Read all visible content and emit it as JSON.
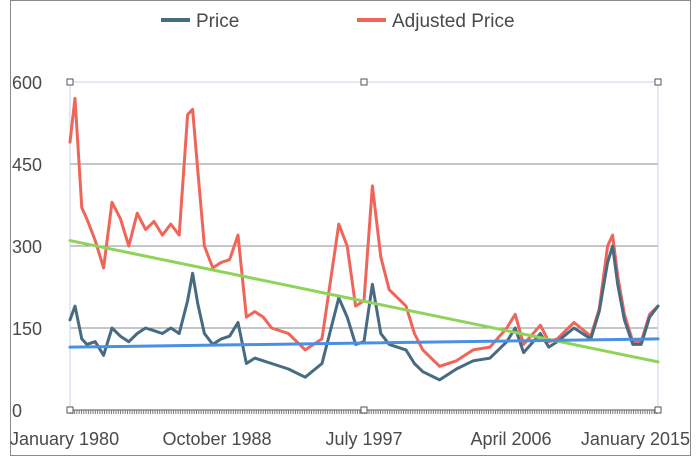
{
  "colors": {
    "price": "#466b82",
    "adjusted_price": "#f0655a",
    "trend_adjusted": "#8ed45a",
    "trend_price": "#4a90e2",
    "grid": "#8c8c8c"
  },
  "legend": {
    "items": [
      {
        "name": "Price",
        "color": "#466b82"
      },
      {
        "name": "Adjusted Price",
        "color": "#f0655a"
      }
    ]
  },
  "chart_data": {
    "type": "line",
    "title": "",
    "xlabel": "",
    "ylabel": "",
    "x_range": [
      1980.0,
      2015.0
    ],
    "ylim": [
      0,
      600
    ],
    "yticks": [
      0,
      150,
      300,
      450,
      600
    ],
    "xtick_labels": [
      {
        "label": "January 1980",
        "x": 1980.0
      },
      {
        "label": "October 1988",
        "x": 1988.75
      },
      {
        "label": "July 1997",
        "x": 1997.5
      },
      {
        "label": "April 2006",
        "x": 2006.25
      },
      {
        "label": "January 2015",
        "x": 2015.0
      }
    ],
    "grid": true,
    "legend_position": "top",
    "series": [
      {
        "name": "Price",
        "x": [
          1980.0,
          1980.3,
          1980.7,
          1981.0,
          1981.5,
          1982.0,
          1982.5,
          1983.0,
          1983.5,
          1984.0,
          1984.5,
          1985.0,
          1985.5,
          1986.0,
          1986.5,
          1987.0,
          1987.3,
          1987.6,
          1988.0,
          1988.5,
          1989.0,
          1989.5,
          1990.0,
          1990.5,
          1991.0,
          1991.5,
          1992.0,
          1993.0,
          1994.0,
          1995.0,
          1996.0,
          1996.5,
          1997.0,
          1997.5,
          1998.0,
          1998.5,
          1999.0,
          2000.0,
          2000.5,
          2001.0,
          2002.0,
          2003.0,
          2004.0,
          2005.0,
          2006.0,
          2006.5,
          2007.0,
          2008.0,
          2008.5,
          2009.0,
          2010.0,
          2011.0,
          2011.5,
          2012.0,
          2012.3,
          2012.6,
          2013.0,
          2013.5,
          2014.0,
          2014.5,
          2015.0
        ],
        "y": [
          165,
          190,
          130,
          120,
          125,
          100,
          150,
          135,
          125,
          140,
          150,
          145,
          140,
          150,
          140,
          200,
          250,
          195,
          140,
          120,
          130,
          135,
          160,
          85,
          95,
          90,
          85,
          75,
          60,
          85,
          205,
          170,
          120,
          125,
          230,
          140,
          120,
          110,
          85,
          70,
          55,
          75,
          90,
          95,
          125,
          150,
          105,
          140,
          115,
          125,
          150,
          130,
          180,
          270,
          300,
          230,
          165,
          120,
          120,
          170,
          190
        ]
      },
      {
        "name": "Adjusted Price",
        "x": [
          1980.0,
          1980.3,
          1980.7,
          1981.0,
          1981.5,
          1982.0,
          1982.5,
          1983.0,
          1983.5,
          1984.0,
          1984.5,
          1985.0,
          1985.5,
          1986.0,
          1986.5,
          1987.0,
          1987.3,
          1987.6,
          1988.0,
          1988.5,
          1989.0,
          1989.5,
          1990.0,
          1990.5,
          1991.0,
          1991.5,
          1992.0,
          1993.0,
          1994.0,
          1995.0,
          1996.0,
          1996.5,
          1997.0,
          1997.5,
          1998.0,
          1998.5,
          1999.0,
          2000.0,
          2000.5,
          2001.0,
          2002.0,
          2003.0,
          2004.0,
          2005.0,
          2006.0,
          2006.5,
          2007.0,
          2008.0,
          2008.5,
          2009.0,
          2010.0,
          2011.0,
          2011.5,
          2012.0,
          2012.3,
          2012.6,
          2013.0,
          2013.5,
          2014.0,
          2014.5,
          2015.0
        ],
        "y": [
          490,
          570,
          370,
          350,
          310,
          260,
          380,
          350,
          300,
          360,
          330,
          345,
          320,
          340,
          320,
          540,
          550,
          440,
          300,
          260,
          270,
          275,
          320,
          170,
          180,
          170,
          150,
          140,
          110,
          130,
          340,
          300,
          190,
          200,
          410,
          280,
          220,
          190,
          140,
          110,
          80,
          90,
          110,
          115,
          150,
          175,
          120,
          155,
          125,
          130,
          160,
          135,
          185,
          300,
          320,
          245,
          175,
          125,
          125,
          175,
          190
        ]
      }
    ],
    "trendlines": [
      {
        "series": "Adjusted Price",
        "x": [
          1980.0,
          2015.0
        ],
        "y": [
          310,
          88
        ]
      },
      {
        "series": "Price",
        "x": [
          1980.0,
          2015.0
        ],
        "y": [
          115,
          130
        ]
      }
    ]
  }
}
